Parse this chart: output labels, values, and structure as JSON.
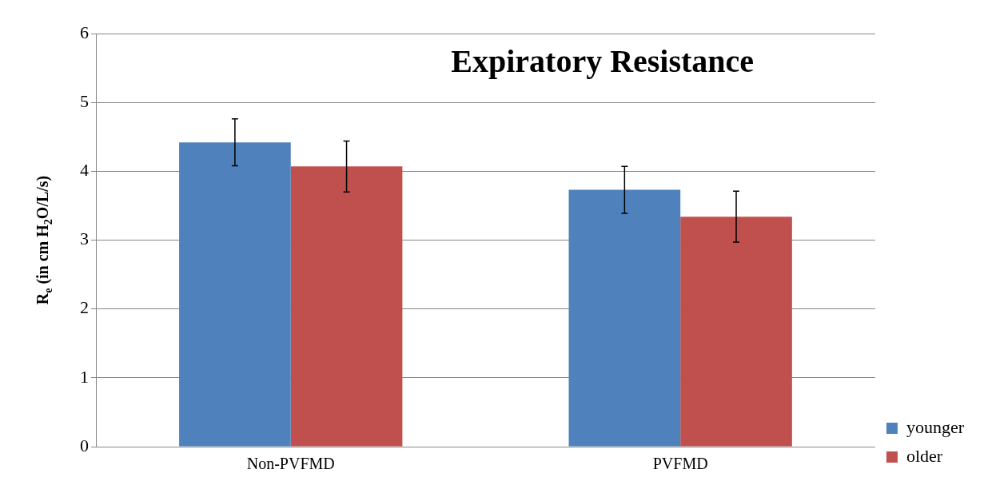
{
  "chart_data": {
    "type": "bar",
    "title": "Expiratory Resistance",
    "ylabel": "R$_{e}$ (in cm H$_{2}$O/L/s)",
    "categories": [
      "Non-PVFMD",
      "PVFMD"
    ],
    "series": [
      {
        "name": "younger",
        "color": "#4f81bd",
        "values": [
          4.42,
          3.73
        ],
        "errors": [
          0.34,
          0.34
        ]
      },
      {
        "name": "older",
        "color": "#c0504d",
        "values": [
          4.07,
          3.34
        ],
        "errors": [
          0.37,
          0.37
        ]
      }
    ],
    "ylim": [
      0,
      6
    ],
    "yticks": [
      0,
      1,
      2,
      3,
      4,
      5,
      6
    ],
    "grid": "y",
    "legend": "bottom right"
  }
}
